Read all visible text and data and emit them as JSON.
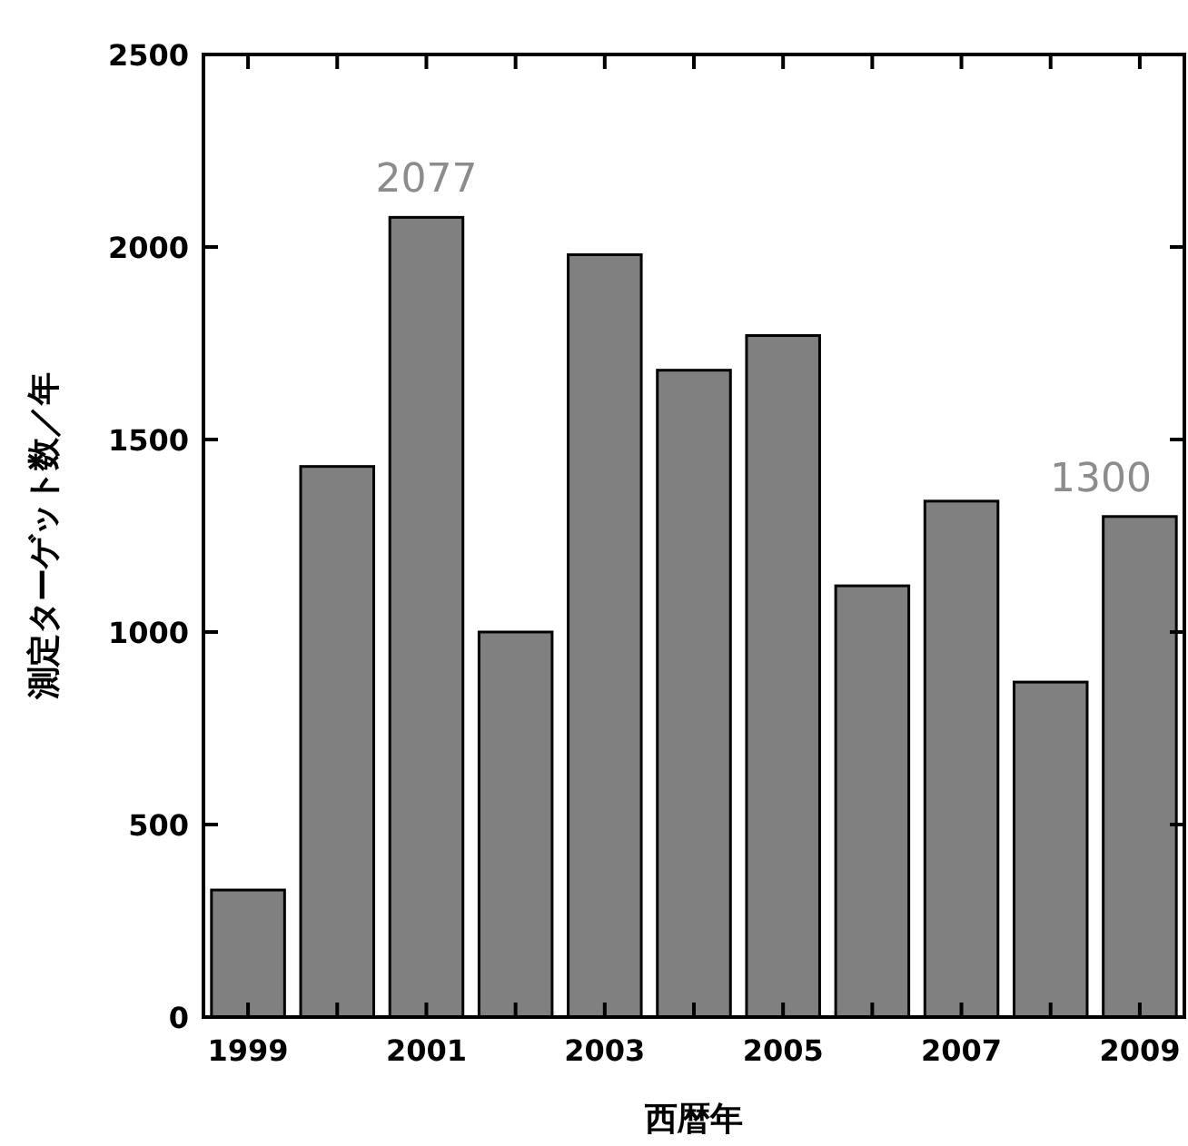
{
  "chart_data": {
    "type": "bar",
    "xlabel": "西暦年",
    "ylabel": "測定ターゲット数／年",
    "categories": [
      "1999",
      null,
      "2001",
      null,
      "2003",
      null,
      "2005",
      null,
      "2007",
      null,
      "2009"
    ],
    "values": [
      330,
      1430,
      2077,
      1000,
      1980,
      1680,
      1770,
      1120,
      1340,
      870,
      1300
    ],
    "value_labels": [
      null,
      null,
      "2077",
      null,
      null,
      null,
      null,
      null,
      null,
      null,
      "1300"
    ],
    "color": "#808080",
    "ylim": [
      0,
      2500
    ],
    "yticks": [
      0,
      500,
      1000,
      1500,
      2000,
      2500
    ],
    "grid": false
  }
}
